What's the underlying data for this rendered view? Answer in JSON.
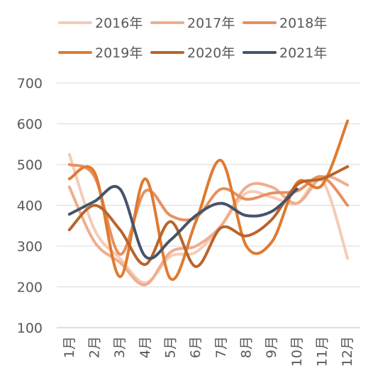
{
  "chart_data": {
    "type": "line",
    "title": "",
    "xlabel": "",
    "ylabel": "",
    "categories": [
      "1月",
      "2月",
      "3月",
      "4月",
      "5月",
      "6月",
      "7月",
      "8月",
      "9月",
      "10月",
      "11月",
      "12月"
    ],
    "ylim": [
      100,
      700
    ],
    "yticks": [
      100,
      200,
      300,
      400,
      500,
      600,
      700
    ],
    "grid": "horizontal",
    "legend": "top",
    "smooth": true,
    "series": [
      {
        "name": "2016年",
        "color": "#F6CBB6",
        "values": [
          525,
          340,
          270,
          210,
          275,
          285,
          350,
          430,
          420,
          405,
          460,
          270
        ]
      },
      {
        "name": "2017年",
        "color": "#EFAE8E",
        "values": [
          445,
          310,
          260,
          205,
          285,
          300,
          350,
          445,
          445,
          405,
          470,
          450
        ]
      },
      {
        "name": "2018年",
        "color": "#E8905E",
        "values": [
          500,
          470,
          280,
          435,
          375,
          370,
          440,
          415,
          430,
          435,
          470,
          400
        ]
      },
      {
        "name": "2019年",
        "color": "#E07A2F",
        "values": [
          465,
          480,
          225,
          465,
          220,
          360,
          510,
          300,
          310,
          455,
          450,
          607
        ]
      },
      {
        "name": "2020年",
        "color": "#B9642C",
        "values": [
          340,
          400,
          340,
          255,
          360,
          250,
          345,
          325,
          365,
          450,
          465,
          495
        ]
      },
      {
        "name": "2021年",
        "color": "#44546A",
        "values": [
          378,
          410,
          440,
          275,
          315,
          375,
          405,
          375,
          385,
          440,
          null,
          null
        ]
      }
    ]
  }
}
